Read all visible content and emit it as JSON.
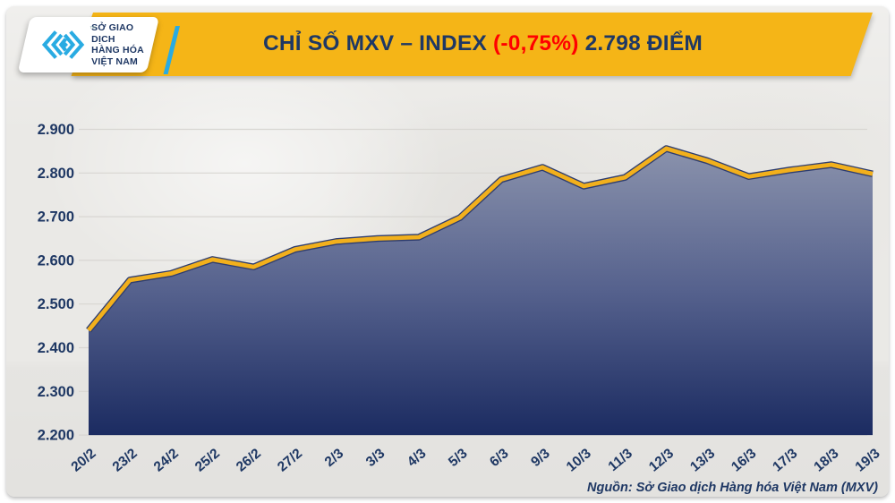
{
  "header": {
    "logo": {
      "icon": "mxv-chevrons-icon",
      "line1": "SỞ GIAO DỊCH",
      "line2": "HÀNG HÓA",
      "line3": "VIỆT NAM",
      "trademark": "™"
    },
    "title": {
      "prefix": "CHỈ SỐ MXV – INDEX ",
      "change": "(-0,75%)",
      "suffix": " 2.798 ĐIỂM"
    }
  },
  "colors": {
    "banner": "#F5B517",
    "title_text": "#1F3864",
    "change_text": "#FF0000",
    "logo_cyan": "#29ABE2",
    "background": "#EAE9E6"
  },
  "chart_data": {
    "type": "area",
    "title": "CHỈ SỐ MXV – INDEX (-0,75%) 2.798 ĐIỂM",
    "categories": [
      "20/2",
      "23/2",
      "24/2",
      "25/2",
      "26/2",
      "27/2",
      "2/3",
      "3/3",
      "4/3",
      "5/3",
      "6/3",
      "9/3",
      "10/3",
      "11/3",
      "12/3",
      "13/3",
      "16/3",
      "17/3",
      "18/3",
      "19/3"
    ],
    "values": [
      2440,
      2555,
      2570,
      2602,
      2585,
      2625,
      2643,
      2650,
      2653,
      2698,
      2785,
      2813,
      2770,
      2790,
      2856,
      2828,
      2792,
      2807,
      2819,
      2798
    ],
    "last_value_label": "2.798",
    "change_pct_label": "-0,75%",
    "unit": "điểm",
    "xlabel": "",
    "ylabel": "",
    "ylim": [
      2200,
      2900
    ],
    "ytick_step": 100,
    "ytick_labels": [
      "2.200",
      "2.300",
      "2.400",
      "2.500",
      "2.600",
      "2.700",
      "2.800",
      "2.900"
    ],
    "grid": true,
    "legend": "none",
    "line_color": "#F2B01C",
    "line_edge_color": "#2E3D6F",
    "area_gradient": [
      "#8A92AC",
      "#55618D",
      "#1B2B61"
    ],
    "grid_color": "#d8d6d2",
    "label_color": "#1F3864"
  },
  "footer": {
    "source": "Nguồn: Sở Giao dịch Hàng hóa Việt Nam (MXV)"
  }
}
